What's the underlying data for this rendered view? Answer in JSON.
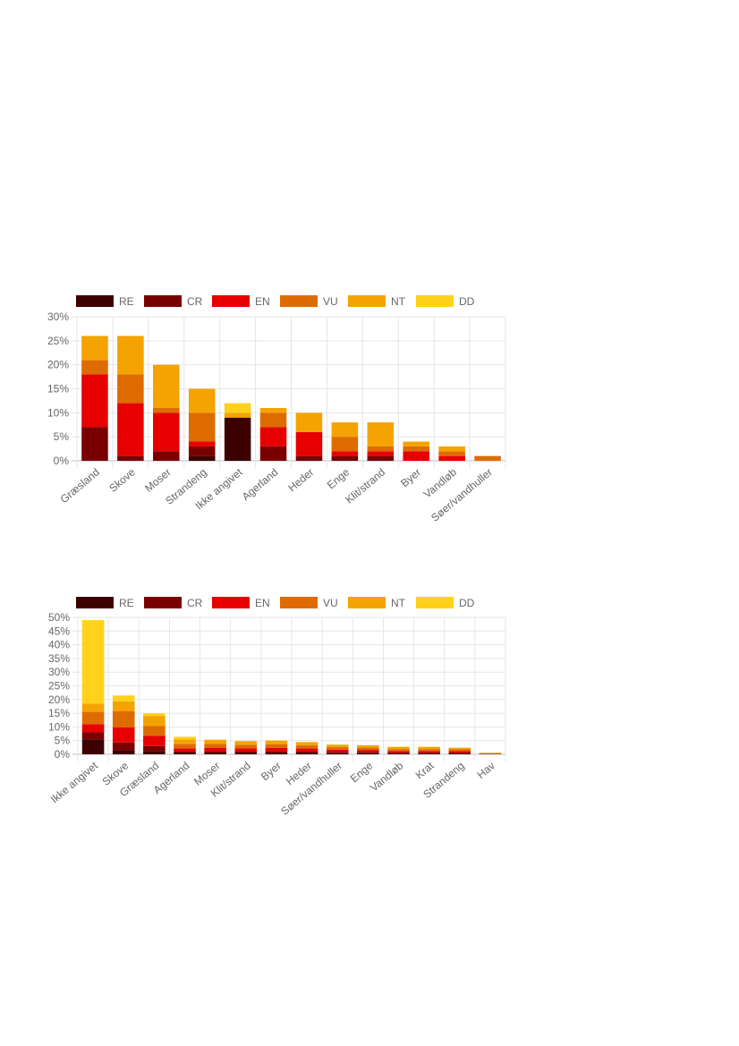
{
  "chart_data": [
    {
      "type": "bar",
      "stacked": true,
      "legend_position": "top",
      "grid": true,
      "ylim": [
        0,
        30
      ],
      "ytick_step": 5,
      "ytick_suffix": "%",
      "series_names": [
        "RE",
        "CR",
        "EN",
        "VU",
        "NT",
        "DD"
      ],
      "colors": [
        "#3d0000",
        "#7a0000",
        "#e60000",
        "#de6b00",
        "#f4a300",
        "#ffd11a"
      ],
      "categories": [
        "Græsland",
        "Skove",
        "Moser",
        "Strandeng",
        "Ikke angivet",
        "Agerland",
        "Heder",
        "Enge",
        "Klit/strand",
        "Byer",
        "Vandløb",
        "Søer/vandhuller"
      ],
      "series": [
        {
          "name": "RE",
          "values": [
            0,
            0,
            0,
            1,
            9,
            0,
            0,
            0,
            0,
            0,
            0,
            0
          ]
        },
        {
          "name": "CR",
          "values": [
            7,
            1,
            2,
            2,
            0,
            3,
            1,
            1,
            1,
            0,
            0,
            0
          ]
        },
        {
          "name": "EN",
          "values": [
            11,
            11,
            8,
            1,
            0,
            4,
            5,
            1,
            1,
            2,
            1,
            0
          ]
        },
        {
          "name": "VU",
          "values": [
            3,
            6,
            1,
            6,
            0,
            3,
            0,
            3,
            1,
            1,
            1,
            1
          ]
        },
        {
          "name": "NT",
          "values": [
            5,
            8,
            9,
            5,
            1,
            1,
            4,
            3,
            5,
            1,
            1,
            0
          ]
        },
        {
          "name": "DD",
          "values": [
            0,
            0,
            0,
            0,
            2,
            0,
            0,
            0,
            0,
            0,
            0,
            0
          ]
        }
      ]
    },
    {
      "type": "bar",
      "stacked": true,
      "legend_position": "top",
      "grid": true,
      "ylim": [
        0,
        50
      ],
      "ytick_step": 5,
      "ytick_suffix": "%",
      "series_names": [
        "RE",
        "CR",
        "EN",
        "VU",
        "NT",
        "DD"
      ],
      "colors": [
        "#3d0000",
        "#7a0000",
        "#e60000",
        "#de6b00",
        "#f4a300",
        "#ffd11a"
      ],
      "categories": [
        "Ikke angivet",
        "Skove",
        "Græsland",
        "Agerland",
        "Moser",
        "Klit/strand",
        "Byer",
        "Heder",
        "Søer/vandhuller",
        "Enge",
        "Vandløb",
        "Krat",
        "Strandeng",
        "Hav"
      ],
      "series": [
        {
          "name": "RE",
          "values": [
            5.5,
            1.5,
            1.2,
            0.5,
            0.5,
            0.5,
            0.5,
            0.5,
            0.4,
            0.4,
            0.3,
            0.3,
            0.3,
            0
          ]
        },
        {
          "name": "CR",
          "values": [
            2.5,
            2.8,
            1.8,
            0.5,
            0.5,
            0.5,
            0.5,
            0.5,
            0.4,
            0.4,
            0.3,
            0.3,
            0.3,
            0.1
          ]
        },
        {
          "name": "EN",
          "values": [
            3,
            5.5,
            3.8,
            1.2,
            1.4,
            1.2,
            1.3,
            1.1,
            0.9,
            0.8,
            0.6,
            0.6,
            0.6,
            0.1
          ]
        },
        {
          "name": "VU",
          "values": [
            4.5,
            6,
            3.5,
            1.6,
            1.4,
            1.3,
            1.4,
            1.2,
            1,
            0.9,
            0.7,
            0.7,
            0.6,
            0.2
          ]
        },
        {
          "name": "NT",
          "values": [
            3,
            3.5,
            3.7,
            1.7,
            1.5,
            1.3,
            1.3,
            1.1,
            0.8,
            0.8,
            0.8,
            0.8,
            0.6,
            0.2
          ]
        },
        {
          "name": "DD",
          "values": [
            30.5,
            2.2,
            1,
            0.9,
            0.1,
            0.1,
            0.1,
            0.1,
            0.1,
            0,
            0.1,
            0.1,
            0,
            0
          ]
        }
      ]
    }
  ]
}
